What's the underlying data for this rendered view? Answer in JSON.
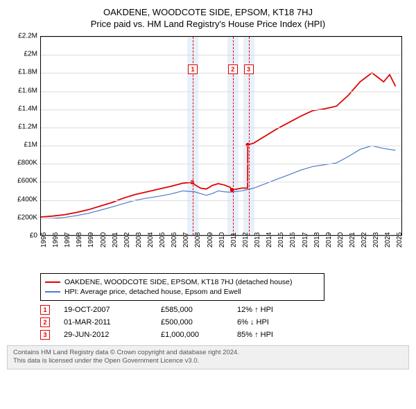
{
  "title": {
    "line1": "OAKDENE, WOODCOTE SIDE, EPSOM, KT18 7HJ",
    "line2": "Price paid vs. HM Land Registry's House Price Index (HPI)"
  },
  "chart": {
    "type": "line",
    "background_color": "#ffffff",
    "grid_color": "#dddddd",
    "border_color": "#000000",
    "xlim": [
      1995,
      2025.5
    ],
    "ylim": [
      0,
      2200000
    ],
    "ytick_step": 200000,
    "ytick_labels": [
      "£0",
      "£200K",
      "£400K",
      "£600K",
      "£800K",
      "£1M",
      "£1.2M",
      "£1.4M",
      "£1.6M",
      "£1.8M",
      "£2M",
      "£2.2M"
    ],
    "xtick_labels": [
      "1995",
      "1996",
      "1997",
      "1998",
      "1999",
      "2000",
      "2001",
      "2002",
      "2003",
      "2004",
      "2005",
      "2006",
      "2007",
      "2008",
      "2009",
      "2010",
      "2011",
      "2012",
      "2013",
      "2014",
      "2015",
      "2016",
      "2017",
      "2018",
      "2019",
      "2020",
      "2021",
      "2022",
      "2023",
      "2024",
      "2025"
    ],
    "label_fontsize": 10,
    "title_fontsize": 13,
    "markers": [
      {
        "id": "1",
        "x": 2007.8,
        "y": 585000,
        "band_color": "#e8f0fb",
        "line_color": "#e00000",
        "box_top_pct": 14
      },
      {
        "id": "2",
        "x": 2011.17,
        "y": 500000,
        "band_color": "#e8f0fb",
        "line_color": "#e00000",
        "box_top_pct": 14
      },
      {
        "id": "3",
        "x": 2012.5,
        "y": 1000000,
        "band_color": "#e8f0fb",
        "line_color": "#e00000",
        "box_top_pct": 14
      }
    ],
    "series": [
      {
        "name": "property",
        "label": "OAKDENE, WOODCOTE SIDE, EPSOM, KT18 7HJ (detached house)",
        "color": "#e00000",
        "width": 1.8,
        "points": [
          [
            1995,
            200000
          ],
          [
            1996,
            210000
          ],
          [
            1997,
            225000
          ],
          [
            1998,
            250000
          ],
          [
            1999,
            280000
          ],
          [
            2000,
            320000
          ],
          [
            2001,
            360000
          ],
          [
            2002,
            410000
          ],
          [
            2003,
            450000
          ],
          [
            2004,
            480000
          ],
          [
            2005,
            510000
          ],
          [
            2006,
            540000
          ],
          [
            2007,
            575000
          ],
          [
            2007.8,
            585000
          ],
          [
            2008,
            560000
          ],
          [
            2008.5,
            520000
          ],
          [
            2009,
            510000
          ],
          [
            2009.5,
            550000
          ],
          [
            2010,
            570000
          ],
          [
            2010.5,
            555000
          ],
          [
            2011,
            530000
          ],
          [
            2011.17,
            500000
          ],
          [
            2011.6,
            510000
          ],
          [
            2012,
            520000
          ],
          [
            2012.49,
            520000
          ],
          [
            2012.5,
            1000000
          ],
          [
            2013,
            1020000
          ],
          [
            2014,
            1100000
          ],
          [
            2015,
            1180000
          ],
          [
            2016,
            1250000
          ],
          [
            2017,
            1320000
          ],
          [
            2018,
            1380000
          ],
          [
            2019,
            1400000
          ],
          [
            2020,
            1430000
          ],
          [
            2021,
            1550000
          ],
          [
            2022,
            1700000
          ],
          [
            2023,
            1800000
          ],
          [
            2023.5,
            1750000
          ],
          [
            2024,
            1700000
          ],
          [
            2024.5,
            1780000
          ],
          [
            2025,
            1650000
          ]
        ]
      },
      {
        "name": "hpi",
        "label": "HPI: Average price, detached house, Epsom and Ewell",
        "color": "#4a7bc8",
        "width": 1.2,
        "points": [
          [
            1995,
            180000
          ],
          [
            1996,
            185000
          ],
          [
            1997,
            195000
          ],
          [
            1998,
            215000
          ],
          [
            1999,
            240000
          ],
          [
            2000,
            275000
          ],
          [
            2001,
            310000
          ],
          [
            2002,
            350000
          ],
          [
            2003,
            385000
          ],
          [
            2004,
            410000
          ],
          [
            2005,
            430000
          ],
          [
            2006,
            455000
          ],
          [
            2007,
            490000
          ],
          [
            2008,
            480000
          ],
          [
            2009,
            440000
          ],
          [
            2009.5,
            460000
          ],
          [
            2010,
            490000
          ],
          [
            2010.5,
            480000
          ],
          [
            2011,
            475000
          ],
          [
            2012,
            490000
          ],
          [
            2013,
            520000
          ],
          [
            2014,
            570000
          ],
          [
            2015,
            620000
          ],
          [
            2016,
            670000
          ],
          [
            2017,
            720000
          ],
          [
            2018,
            760000
          ],
          [
            2019,
            780000
          ],
          [
            2020,
            800000
          ],
          [
            2021,
            870000
          ],
          [
            2022,
            950000
          ],
          [
            2023,
            990000
          ],
          [
            2024,
            960000
          ],
          [
            2025,
            940000
          ]
        ]
      }
    ]
  },
  "legend": {
    "border_color": "#000000",
    "items": [
      {
        "color": "#e00000",
        "label": "OAKDENE, WOODCOTE SIDE, EPSOM, KT18 7HJ (detached house)"
      },
      {
        "color": "#4a7bc8",
        "label": "HPI: Average price, detached house, Epsom and Ewell"
      }
    ]
  },
  "sales": [
    {
      "id": "1",
      "date": "19-OCT-2007",
      "price": "£585,000",
      "pct": "12% ↑ HPI",
      "marker_color": "#e00000"
    },
    {
      "id": "2",
      "date": "01-MAR-2011",
      "price": "£500,000",
      "pct": "6% ↓ HPI",
      "marker_color": "#e00000"
    },
    {
      "id": "3",
      "date": "29-JUN-2012",
      "price": "£1,000,000",
      "pct": "85% ↑ HPI",
      "marker_color": "#e00000"
    }
  ],
  "license": {
    "line1": "Contains HM Land Registry data © Crown copyright and database right 2024.",
    "line2": "This data is licensed under the Open Government Licence v3.0.",
    "bg": "#f0f0f0",
    "border": "#cccccc",
    "text_color": "#555555"
  }
}
